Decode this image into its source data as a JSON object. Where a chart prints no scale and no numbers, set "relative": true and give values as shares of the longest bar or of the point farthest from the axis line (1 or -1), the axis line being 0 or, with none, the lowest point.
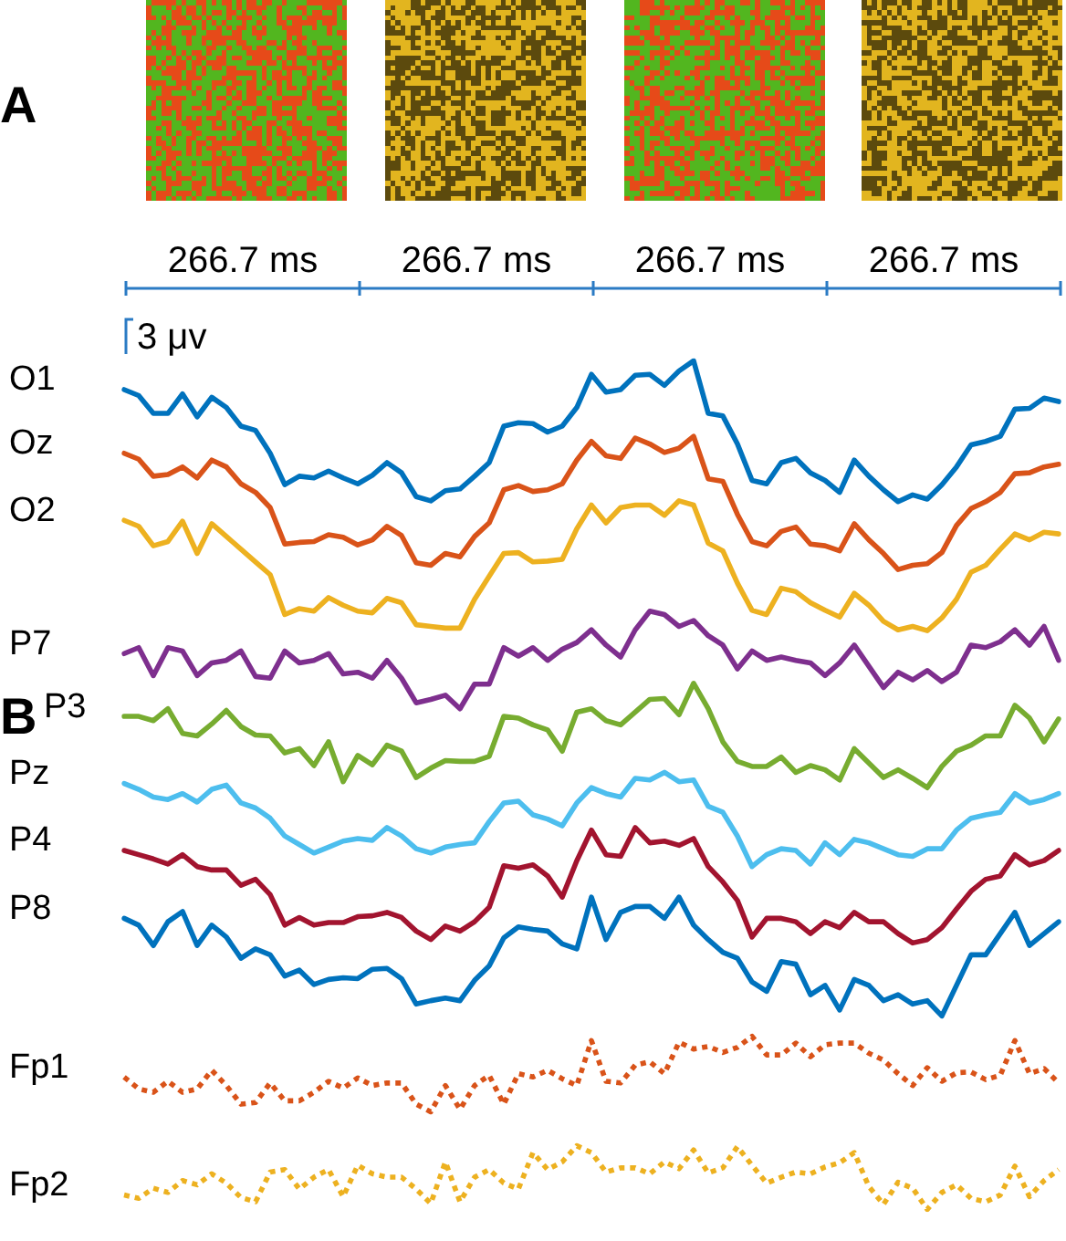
{
  "chart_data": {
    "type": "line",
    "relative": true,
    "marker": "none",
    "categories": [
      null,
      null,
      null,
      null,
      null,
      null,
      null,
      null,
      null,
      null,
      null,
      null,
      null,
      null,
      null,
      null,
      null,
      null,
      null,
      null,
      null,
      null,
      null,
      null,
      null,
      null,
      null,
      null,
      null,
      null,
      null,
      null,
      null,
      null,
      null,
      null,
      null,
      null,
      null,
      null,
      null,
      null,
      null,
      null,
      null,
      null,
      null,
      null,
      null,
      null,
      null,
      null,
      null,
      null,
      null,
      null,
      null,
      null,
      null,
      null,
      null,
      null,
      null,
      null,
      null
    ],
    "series": [
      {
        "name": "O1",
        "color": "#0072bd",
        "values": [
          0.966,
          0.959,
          0.938,
          0.938,
          0.961,
          0.934,
          0.957,
          0.945,
          0.923,
          0.918,
          0.891,
          0.854,
          0.864,
          0.862,
          0.87,
          0.862,
          0.855,
          0.865,
          0.88,
          0.868,
          0.84,
          0.835,
          0.847,
          0.849,
          0.864,
          0.88,
          0.923,
          0.927,
          0.926,
          0.916,
          0.923,
          0.945,
          0.984,
          0.963,
          0.966,
          0.983,
          0.984,
          0.971,
          0.988,
          1,
          0.938,
          0.935,
          0.902,
          0.859,
          0.855,
          0.88,
          0.885,
          0.868,
          0.859,
          0.845,
          0.883,
          0.864,
          0.848,
          0.834,
          0.842,
          0.837,
          0.854,
          0.875,
          0.901,
          0.905,
          0.911,
          0.943,
          0.944,
          0.956,
          0.952
        ]
      },
      {
        "name": "Oz",
        "color": "#d95319",
        "values": [
          0.891,
          0.884,
          0.864,
          0.866,
          0.875,
          0.862,
          0.883,
          0.875,
          0.855,
          0.845,
          0.827,
          0.784,
          0.786,
          0.787,
          0.795,
          0.792,
          0.783,
          0.789,
          0.805,
          0.794,
          0.762,
          0.759,
          0.773,
          0.769,
          0.793,
          0.809,
          0.848,
          0.853,
          0.846,
          0.848,
          0.855,
          0.883,
          0.905,
          0.888,
          0.885,
          0.909,
          0.902,
          0.892,
          0.897,
          0.911,
          0.861,
          0.858,
          0.819,
          0.787,
          0.782,
          0.799,
          0.804,
          0.784,
          0.782,
          0.776,
          0.808,
          0.789,
          0.773,
          0.754,
          0.759,
          0.761,
          0.774,
          0.806,
          0.826,
          0.834,
          0.845,
          0.867,
          0.868,
          0.875,
          0.878
        ]
      },
      {
        "name": "O2",
        "color": "#edb120",
        "values": [
          0.812,
          0.805,
          0.782,
          0.787,
          0.811,
          0.773,
          0.808,
          0.793,
          0.778,
          0.763,
          0.748,
          0.701,
          0.708,
          0.705,
          0.721,
          0.712,
          0.705,
          0.703,
          0.72,
          0.715,
          0.689,
          0.687,
          0.685,
          0.685,
          0.719,
          0.746,
          0.773,
          0.774,
          0.763,
          0.764,
          0.766,
          0.802,
          0.83,
          0.809,
          0.827,
          0.83,
          0.83,
          0.818,
          0.835,
          0.83,
          0.785,
          0.776,
          0.738,
          0.706,
          0.701,
          0.732,
          0.728,
          0.715,
          0.706,
          0.698,
          0.726,
          0.712,
          0.693,
          0.683,
          0.687,
          0.682,
          0.697,
          0.719,
          0.751,
          0.759,
          0.778,
          0.796,
          0.789,
          0.798,
          0.796
        ]
      },
      {
        "name": "P7",
        "color": "#7e2f8e",
        "values": [
          0.655,
          0.662,
          0.629,
          0.662,
          0.658,
          0.629,
          0.644,
          0.647,
          0.658,
          0.628,
          0.626,
          0.658,
          0.644,
          0.647,
          0.655,
          0.631,
          0.633,
          0.626,
          0.647,
          0.626,
          0.597,
          0.601,
          0.606,
          0.59,
          0.619,
          0.619,
          0.662,
          0.652,
          0.662,
          0.647,
          0.66,
          0.668,
          0.683,
          0.665,
          0.651,
          0.683,
          0.705,
          0.701,
          0.687,
          0.694,
          0.676,
          0.665,
          0.637,
          0.658,
          0.647,
          0.651,
          0.647,
          0.644,
          0.629,
          0.644,
          0.665,
          0.64,
          0.615,
          0.633,
          0.624,
          0.635,
          0.622,
          0.633,
          0.665,
          0.662,
          0.669,
          0.683,
          0.665,
          0.687,
          0.647
        ]
      },
      {
        "name": "P3",
        "color": "#77ac30",
        "values": [
          0.581,
          0.581,
          0.576,
          0.59,
          0.561,
          0.558,
          0.572,
          0.588,
          0.569,
          0.559,
          0.558,
          0.538,
          0.543,
          0.523,
          0.551,
          0.504,
          0.535,
          0.524,
          0.547,
          0.54,
          0.509,
          0.52,
          0.529,
          0.528,
          0.528,
          0.534,
          0.581,
          0.579,
          0.571,
          0.565,
          0.54,
          0.586,
          0.59,
          0.576,
          0.571,
          0.586,
          0.601,
          0.602,
          0.583,
          0.62,
          0.59,
          0.551,
          0.528,
          0.522,
          0.522,
          0.533,
          0.515,
          0.523,
          0.518,
          0.506,
          0.543,
          0.526,
          0.509,
          0.518,
          0.508,
          0.497,
          0.522,
          0.54,
          0.547,
          0.558,
          0.558,
          0.594,
          0.579,
          0.551,
          0.578
        ]
      },
      {
        "name": "Pz",
        "color": "#4dbeee",
        "values": [
          0.502,
          0.495,
          0.486,
          0.483,
          0.49,
          0.48,
          0.495,
          0.5,
          0.479,
          0.473,
          0.461,
          0.44,
          0.43,
          0.42,
          0.427,
          0.434,
          0.437,
          0.435,
          0.45,
          0.44,
          0.425,
          0.42,
          0.427,
          0.43,
          0.432,
          0.457,
          0.479,
          0.481,
          0.465,
          0.46,
          0.452,
          0.479,
          0.497,
          0.49,
          0.486,
          0.508,
          0.506,
          0.515,
          0.504,
          0.506,
          0.475,
          0.468,
          0.44,
          0.404,
          0.418,
          0.425,
          0.423,
          0.407,
          0.432,
          0.418,
          0.436,
          0.432,
          0.425,
          0.418,
          0.416,
          0.425,
          0.425,
          0.447,
          0.461,
          0.465,
          0.468,
          0.49,
          0.479,
          0.483,
          0.49
        ]
      },
      {
        "name": "P4",
        "color": "#a2142f",
        "values": [
          0.423,
          0.418,
          0.413,
          0.407,
          0.418,
          0.404,
          0.4,
          0.4,
          0.382,
          0.389,
          0.371,
          0.335,
          0.344,
          0.335,
          0.338,
          0.338,
          0.345,
          0.346,
          0.35,
          0.344,
          0.328,
          0.318,
          0.334,
          0.328,
          0.339,
          0.356,
          0.405,
          0.402,
          0.406,
          0.393,
          0.368,
          0.411,
          0.447,
          0.418,
          0.416,
          0.45,
          0.432,
          0.434,
          0.429,
          0.437,
          0.404,
          0.386,
          0.364,
          0.321,
          0.343,
          0.343,
          0.339,
          0.325,
          0.339,
          0.332,
          0.35,
          0.339,
          0.339,
          0.325,
          0.314,
          0.318,
          0.332,
          0.354,
          0.375,
          0.389,
          0.393,
          0.418,
          0.406,
          0.411,
          0.423
        ]
      },
      {
        "name": "P8",
        "color": "#0072bd",
        "values": [
          0.343,
          0.335,
          0.311,
          0.339,
          0.351,
          0.311,
          0.335,
          0.321,
          0.296,
          0.307,
          0.3,
          0.275,
          0.282,
          0.265,
          0.271,
          0.273,
          0.272,
          0.283,
          0.284,
          0.272,
          0.242,
          0.246,
          0.249,
          0.246,
          0.27,
          0.287,
          0.32,
          0.333,
          0.33,
          0.328,
          0.313,
          0.307,
          0.368,
          0.318,
          0.35,
          0.357,
          0.357,
          0.343,
          0.368,
          0.335,
          0.318,
          0.303,
          0.296,
          0.268,
          0.257,
          0.292,
          0.289,
          0.253,
          0.264,
          0.235,
          0.271,
          0.264,
          0.246,
          0.253,
          0.242,
          0.246,
          0.228,
          0.264,
          0.3,
          0.3,
          0.325,
          0.35,
          0.311,
          0.325,
          0.339
        ]
      },
      {
        "name": "Fp1",
        "color": "#d95319",
        "line_style": "dotted",
        "values": [
          0.156,
          0.142,
          0.138,
          0.151,
          0.138,
          0.142,
          0.164,
          0.146,
          0.124,
          0.126,
          0.149,
          0.128,
          0.128,
          0.138,
          0.151,
          0.143,
          0.155,
          0.146,
          0.149,
          0.149,
          0.124,
          0.115,
          0.146,
          0.118,
          0.146,
          0.158,
          0.124,
          0.16,
          0.156,
          0.164,
          0.154,
          0.146,
          0.199,
          0.151,
          0.149,
          0.17,
          0.174,
          0.16,
          0.197,
          0.189,
          0.192,
          0.185,
          0.191,
          0.204,
          0.182,
          0.182,
          0.196,
          0.18,
          0.194,
          0.196,
          0.196,
          0.184,
          0.176,
          0.16,
          0.146,
          0.167,
          0.151,
          0.161,
          0.162,
          0.153,
          0.158,
          0.199,
          0.16,
          0.166,
          0.149
        ]
      },
      {
        "name": "Fp2",
        "color": "#edb120",
        "line_style": "dotted",
        "values": [
          0.017,
          0.013,
          0.025,
          0.02,
          0.034,
          0.029,
          0.042,
          0.031,
          0.014,
          0.009,
          0.044,
          0.047,
          0.024,
          0.038,
          0.047,
          0.015,
          0.052,
          0.042,
          0.038,
          0.038,
          0.024,
          0.007,
          0.056,
          0.009,
          0.038,
          0.047,
          0.031,
          0.024,
          0.067,
          0.047,
          0.056,
          0.075,
          0.067,
          0.044,
          0.049,
          0.049,
          0.042,
          0.056,
          0.048,
          0.07,
          0.043,
          0.049,
          0.074,
          0.052,
          0.031,
          0.038,
          0.044,
          0.042,
          0.05,
          0.055,
          0.067,
          0.027,
          0.006,
          0.032,
          0.025,
          0,
          0.02,
          0.029,
          0.013,
          0.009,
          0.017,
          0.051,
          0.015,
          0.034,
          0.047
        ]
      }
    ],
    "annotations": [
      "A",
      "B",
      "266.7 ms",
      "266.7 ms",
      "266.7 ms",
      "266.7 ms",
      "3 μv"
    ]
  }
}
